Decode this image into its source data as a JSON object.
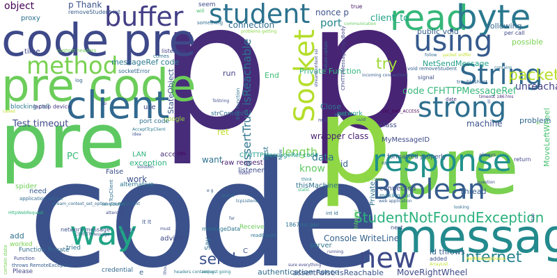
{
  "words": [
    {
      "text": "code",
      "color": "#3b518b"
    },
    {
      "text": "p",
      "color": "#472c7a"
    },
    {
      "text": "p",
      "color": "#482475"
    },
    {
      "text": "pre",
      "color": "#5ec962"
    },
    {
      "text": "pre",
      "color": "#7ad151"
    },
    {
      "text": "p",
      "color": "#8fd744"
    },
    {
      "text": "code pre",
      "color": "#3e4989"
    },
    {
      "text": "pre code",
      "color": "#6ccd5a"
    },
    {
      "text": "message",
      "color": "#238a8d"
    },
    {
      "text": "client",
      "color": "#31688e"
    },
    {
      "text": "buffer",
      "color": "#433e85"
    },
    {
      "text": "student",
      "color": "#2c728e"
    },
    {
      "text": "read",
      "color": "#35b779"
    },
    {
      "text": "byte",
      "color": "#2a788e"
    },
    {
      "text": "using",
      "color": "#375a8c"
    },
    {
      "text": "String",
      "color": "#31688e"
    },
    {
      "text": "Socket",
      "color": "#b5de2b"
    },
    {
      "text": "strong",
      "color": "#2e6e8e"
    },
    {
      "text": "method",
      "color": "#7ad151"
    },
    {
      "text": "response",
      "color": "#21918c"
    },
    {
      "text": "Boolean",
      "color": "#365c8d"
    },
    {
      "text": "way",
      "color": "#20a486"
    },
    {
      "text": "new",
      "color": "#3e4a89"
    },
    {
      "text": "Internet",
      "color": "#26828e"
    },
    {
      "text": "StudentNotFoundException",
      "color": "#2db27d"
    },
    {
      "text": "try",
      "color": "#9fda3a"
    },
    {
      "text": "packet",
      "color": "#b8de29"
    },
    {
      "text": "object",
      "color": "#440154"
    },
    {
      "text": "p Thank",
      "color": "#3b528b"
    },
    {
      "text": "removeStudent int",
      "color": "#365d8d"
    },
    {
      "text": "proxy",
      "color": "#2d708e"
    },
    {
      "text": "time",
      "color": "#3f4889"
    },
    {
      "text": "custom headers",
      "color": "#6ccd5a"
    },
    {
      "text": "seem",
      "color": "#3e4c8a"
    },
    {
      "text": "will",
      "color": "#48c16e"
    },
    {
      "text": "something",
      "color": "#2e6f8e"
    },
    {
      "text": "true",
      "color": "#481668"
    },
    {
      "text": "communication",
      "color": "#65cb5e"
    },
    {
      "text": "following",
      "color": "#31668e"
    },
    {
      "text": "nonce p",
      "color": "#3b528b"
    },
    {
      "text": "client_to",
      "color": "#1fa187"
    },
    {
      "text": "connection",
      "color": "#2f6c8e"
    },
    {
      "text": "problems getting",
      "color": "#8bd646"
    },
    {
      "text": "port",
      "color": "#25848e"
    },
    {
      "text": "public void",
      "color": "#355f8d"
    },
    {
      "text": "possible",
      "color": "#7ad151"
    },
    {
      "text": "per call",
      "color": "#404688"
    },
    {
      "text": "assertTrue isReachable",
      "color": "#2c738e"
    },
    {
      "text": "messageRef code",
      "color": "#2a788e"
    },
    {
      "text": "socketError",
      "color": "#31688e"
    },
    {
      "text": "listening",
      "color": "#414487"
    },
    {
      "text": "comes",
      "color": "#2c728e"
    },
    {
      "text": "log",
      "color": "#355e8d"
    },
    {
      "text": "run",
      "color": "#433e85"
    },
    {
      "text": "End",
      "color": "#3dbc74"
    },
    {
      "text": "Private Function",
      "color": "#2fb47c"
    },
    {
      "text": "NetSendMessage",
      "color": "#1f9e89"
    },
    {
      "text": "code CFHTTPMessageRef",
      "color": "#35b779"
    },
    {
      "text": "void removeStudent",
      "color": "#34608d"
    },
    {
      "text": "contains",
      "color": "#2c718e"
    },
    {
      "text": "li ligt",
      "color": "#3a538b"
    },
    {
      "text": "unreachable",
      "color": "#424086"
    },
    {
      "text": "signal",
      "color": "#3d4e8a"
    },
    {
      "text": "troubleshoot",
      "color": "#31678e"
    },
    {
      "text": "date",
      "color": "#46337f"
    },
    {
      "text": "timeout 1867ms",
      "color": "#472d7b"
    },
    {
      "text": "li",
      "color": "#3b528b"
    },
    {
      "text": "blocking call",
      "color": "#2a778e"
    },
    {
      "text": "laptop device",
      "color": "#453581"
    },
    {
      "text": "sb",
      "color": "#414487"
    },
    {
      "text": "use",
      "color": "#3f4788"
    },
    {
      "text": "StateObject",
      "color": "#39568c"
    },
    {
      "text": "called",
      "color": "#bddf26"
    },
    {
      "text": "google",
      "color": "#9dd93b"
    },
    {
      "text": "strContent",
      "color": "#2f6b8e"
    },
    {
      "text": "End Function",
      "color": "#2c728e"
    },
    {
      "text": "Close",
      "color": "#2a768e"
    },
    {
      "text": "network",
      "color": "#1fa088"
    },
    {
      "text": "EXC_BAD_ACCESS",
      "color": "#440154"
    },
    {
      "text": "uuid",
      "color": "#3b528b"
    },
    {
      "text": "problem",
      "color": "#31688e"
    },
    {
      "text": "Test timeout",
      "color": "#3e4a89"
    },
    {
      "text": "port code",
      "color": "#2e6e8e"
    },
    {
      "text": "machine",
      "color": "#3b528b"
    },
    {
      "text": "MoveLeftWheel",
      "color": "#48c16e"
    },
    {
      "text": "class",
      "color": "#3f4889"
    },
    {
      "text": "length",
      "color": "#73d056"
    },
    {
      "text": "wrapper class",
      "color": "#481f70"
    },
    {
      "text": "AcceptTcpClient",
      "color": "#2a788e"
    },
    {
      "text": "idea",
      "color": "#3b528b"
    },
    {
      "text": "LAN",
      "color": "#2eb37c"
    },
    {
      "text": "access",
      "color": "#472a7a"
    },
    {
      "text": "DNS",
      "color": "#440154"
    },
    {
      "text": "ret",
      "color": "#bddf26"
    },
    {
      "text": "CFHTTPMessageRef code",
      "color": "#1f9a8a"
    },
    {
      "text": "test",
      "color": "#2b748e"
    },
    {
      "text": "Now",
      "color": "#2e6d8e"
    },
    {
      "text": "formatted properly",
      "color": "#39558c"
    },
    {
      "text": "RMI",
      "color": "#2e6f8e"
    },
    {
      "text": "always",
      "color": "#3d4d8a"
    },
    {
      "text": "return",
      "color": "#404588"
    },
    {
      "text": "PC",
      "color": "#3aba76"
    },
    {
      "text": "False",
      "color": "#3d4e8a"
    },
    {
      "text": "exception",
      "color": "#2db27d"
    },
    {
      "text": "work",
      "color": "#3b518b"
    },
    {
      "text": "want",
      "color": "#2d718e"
    },
    {
      "text": "know",
      "color": "#5ec962"
    },
    {
      "text": "data",
      "color": "#2b758e"
    },
    {
      "text": "id",
      "color": "#34618d"
    },
    {
      "text": "listener",
      "color": "#3e4c8a"
    },
    {
      "text": "raw request",
      "color": "#482374"
    },
    {
      "text": "think",
      "color": "#26828e"
    },
    {
      "text": "connected",
      "color": "#3c4f8a"
    },
    {
      "text": "making sure",
      "color": "#2a788e"
    },
    {
      "text": "web application",
      "color": "#365d8d"
    },
    {
      "text": "Thread",
      "color": "#355e8d"
    },
    {
      "text": "spider",
      "color": "#6ece58"
    },
    {
      "text": "need",
      "color": "#375b8d"
    },
    {
      "text": "alternative",
      "color": "#2b748e"
    },
    {
      "text": "e g",
      "color": "#3b528b"
    },
    {
      "text": "thisMachine",
      "color": "#2c718e"
    },
    {
      "text": "static",
      "color": "#37b878"
    },
    {
      "text": "sub",
      "color": "#3e4989"
    },
    {
      "text": "add",
      "color": "#2e6f8e"
    },
    {
      "text": "worked",
      "color": "#7ad151"
    },
    {
      "text": "Function Private",
      "color": "#2f6b8e"
    },
    {
      "text": "throws RemoteException",
      "color": "#365c8d"
    },
    {
      "text": "Please",
      "color": "#3f4788"
    },
    {
      "text": "network message",
      "color": "#3b528b"
    },
    {
      "text": "tried",
      "color": "#2d708e"
    },
    {
      "text": "lt lt",
      "color": "#39558c"
    },
    {
      "text": "advice",
      "color": "#3e4989"
    },
    {
      "text": "credential",
      "color": "#31688e"
    },
    {
      "text": "e",
      "color": "#355f8d"
    },
    {
      "text": "send",
      "color": "#3b528b"
    },
    {
      "text": "Say",
      "color": "#2d708e"
    },
    {
      "text": "C",
      "color": "#3b528b"
    },
    {
      "text": "Receive",
      "color": "#6ccd5a"
    },
    {
      "text": "Console WriteLine",
      "color": "#34618d"
    },
    {
      "text": "server",
      "color": "#2c728e"
    },
    {
      "text": "authentication nonce",
      "color": "#2f6c8e"
    },
    {
      "text": "assertFalse isReachable",
      "color": "#3a548c"
    },
    {
      "text": "MoveRightWheel",
      "color": "#3e4a89"
    },
    {
      "text": "id throws",
      "color": "#34618d"
    },
    {
      "text": "added",
      "color": "#3b528b"
    },
    {
      "text": "next",
      "color": "#3e4c8a"
    },
    {
      "text": "1867ms per",
      "color": "#2c728e"
    },
    {
      "text": "int id",
      "color": "#2e6f8e"
    },
    {
      "text": "far",
      "color": "#39558c"
    },
    {
      "text": "readCount",
      "color": "#2c728e"
    },
    {
      "text": "NetMessageQueue",
      "color": "#dce319"
    },
    {
      "text": "ArrayList",
      "color": "#bddf26"
    },
    {
      "text": "headers containing",
      "color": "#2a788e"
    },
    {
      "text": "request going",
      "color": "#26828e"
    },
    {
      "text": "Function",
      "color": "#3e4989"
    },
    {
      "text": "sure everything",
      "color": "#414487"
    },
    {
      "text": "running",
      "color": "#404688"
    },
    {
      "text": "TcpClient",
      "color": "#2e6f8e"
    },
    {
      "text": "CFHTTPMessage",
      "color": "#375b8d"
    },
    {
      "text": "iPhone",
      "color": "#3b528b"
    },
    {
      "text": "tcpListener",
      "color": "#31688e"
    },
    {
      "text": "queue",
      "color": "#2c728e"
    },
    {
      "text": "looking",
      "color": "#2f6b8e"
    },
    {
      "text": "question",
      "color": "#3e4a89"
    },
    {
      "text": "application server",
      "color": "#31688e"
    },
    {
      "text": "stream_context_set_option streamContext",
      "color": "#31688e"
    },
    {
      "text": "certain data",
      "color": "#75d054"
    },
    {
      "text": "HttpWebRequest",
      "color": "#2fb47c"
    },
    {
      "text": "detect",
      "color": "#3b528b"
    },
    {
      "text": "tempBuffer",
      "color": "#2a788e"
    },
    {
      "text": "ToString",
      "color": "#3e4c8a"
    },
    {
      "text": "incoming connections",
      "color": "#365c8d"
    },
    {
      "text": "stop",
      "color": "#3b528b"
    },
    {
      "text": "write",
      "color": "#2e6e8e"
    },
    {
      "text": "null",
      "color": "#3e4989"
    },
    {
      "text": "Integer",
      "color": "#6ccd5a"
    },
    {
      "text": "thought",
      "color": "#3b528b"
    },
    {
      "text": "attercap",
      "color": "#3e4989"
    },
    {
      "text": "packet sniffer",
      "color": "#bddf26"
    },
    {
      "text": "follow",
      "color": "#31688e"
    },
    {
      "text": "listen",
      "color": "#414487"
    },
    {
      "text": "System",
      "color": "#7ad151"
    },
    {
      "text": "Private",
      "color": "#2c728e"
    },
    {
      "text": "MyMessageID",
      "color": "#3e4989"
    },
    {
      "text": "solution",
      "color": "#3b528b"
    },
    {
      "text": "must",
      "color": "#3e4c8a"
    },
    {
      "text": "ar",
      "color": "#6ccd5a"
    },
    {
      "text": "messageData",
      "color": "#2c728e"
    },
    {
      "text": "streamContext ssl",
      "color": "#3e4989"
    },
    {
      "text": "CFHTTPMessageCopyBody",
      "color": "#414487"
    },
    {
      "text": "return certain",
      "color": "#2a788e"
    }
  ]
}
